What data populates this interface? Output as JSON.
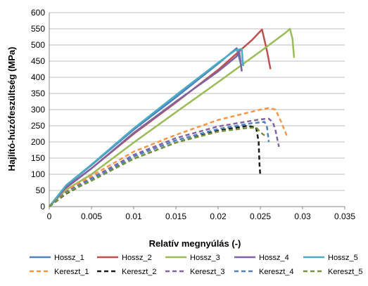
{
  "chart_data": {
    "type": "line",
    "xlabel": "Relatív megnyúlás (-)",
    "ylabel": "Hajlító-húzófeszültség (MPa)",
    "xlim": [
      0,
      0.035
    ],
    "ylim": [
      0,
      600
    ],
    "x_ticks": [
      "0",
      "0.005",
      "0.01",
      "0.015",
      "0.02",
      "0.025",
      "0.03",
      "0.035"
    ],
    "y_ticks": [
      "0",
      "50",
      "100",
      "150",
      "200",
      "250",
      "300",
      "350",
      "400",
      "450",
      "500",
      "550",
      "600"
    ],
    "grid": "horizontal",
    "legend_position": "bottom",
    "series": [
      {
        "name": "Hossz_1",
        "color": "#4F81BD",
        "dash": "solid",
        "points": [
          [
            0,
            0
          ],
          [
            0.002,
            65
          ],
          [
            0.005,
            128
          ],
          [
            0.01,
            238
          ],
          [
            0.015,
            338
          ],
          [
            0.02,
            442
          ],
          [
            0.0215,
            475
          ],
          [
            0.0222,
            490
          ],
          [
            0.0227,
            440
          ],
          [
            0.0228,
            418
          ]
        ]
      },
      {
        "name": "Hossz_2",
        "color": "#C0504D",
        "dash": "solid",
        "points": [
          [
            0,
            0
          ],
          [
            0.002,
            58
          ],
          [
            0.005,
            118
          ],
          [
            0.01,
            225
          ],
          [
            0.015,
            322
          ],
          [
            0.02,
            423
          ],
          [
            0.024,
            515
          ],
          [
            0.0252,
            548
          ],
          [
            0.0258,
            480
          ],
          [
            0.0262,
            425
          ]
        ]
      },
      {
        "name": "Hossz_3",
        "color": "#9BBB59",
        "dash": "solid",
        "points": [
          [
            0,
            0
          ],
          [
            0.002,
            52
          ],
          [
            0.005,
            100
          ],
          [
            0.01,
            198
          ],
          [
            0.015,
            292
          ],
          [
            0.02,
            385
          ],
          [
            0.025,
            480
          ],
          [
            0.028,
            538
          ],
          [
            0.0285,
            550
          ],
          [
            0.0288,
            520
          ],
          [
            0.029,
            460
          ]
        ]
      },
      {
        "name": "Hossz_4",
        "color": "#8064A2",
        "dash": "solid",
        "points": [
          [
            0,
            0
          ],
          [
            0.002,
            60
          ],
          [
            0.005,
            118
          ],
          [
            0.01,
            228
          ],
          [
            0.015,
            325
          ],
          [
            0.02,
            418
          ],
          [
            0.0222,
            465
          ],
          [
            0.0225,
            480
          ],
          [
            0.0227,
            440
          ],
          [
            0.0228,
            420
          ]
        ]
      },
      {
        "name": "Hossz_5",
        "color": "#4BACC6",
        "dash": "solid",
        "points": [
          [
            0,
            0
          ],
          [
            0.002,
            66
          ],
          [
            0.005,
            130
          ],
          [
            0.01,
            242
          ],
          [
            0.015,
            345
          ],
          [
            0.02,
            445
          ],
          [
            0.022,
            483
          ],
          [
            0.0228,
            488
          ],
          [
            0.0229,
            450
          ],
          [
            0.023,
            435
          ]
        ]
      },
      {
        "name": "Kereszt_1",
        "color": "#F79646",
        "dash": "dashed",
        "points": [
          [
            0,
            0
          ],
          [
            0.002,
            48
          ],
          [
            0.005,
            95
          ],
          [
            0.01,
            170
          ],
          [
            0.015,
            222
          ],
          [
            0.02,
            268
          ],
          [
            0.025,
            300
          ],
          [
            0.026,
            305
          ],
          [
            0.0268,
            300
          ],
          [
            0.0275,
            260
          ],
          [
            0.0282,
            215
          ]
        ]
      },
      {
        "name": "Kereszt_2",
        "color": "#1a1a1a",
        "dash": "dashed",
        "points": [
          [
            0,
            0
          ],
          [
            0.002,
            40
          ],
          [
            0.005,
            82
          ],
          [
            0.01,
            148
          ],
          [
            0.015,
            198
          ],
          [
            0.02,
            235
          ],
          [
            0.0235,
            250
          ],
          [
            0.0245,
            245
          ],
          [
            0.0248,
            200
          ],
          [
            0.0249,
            130
          ],
          [
            0.025,
            95
          ]
        ]
      },
      {
        "name": "Kereszt_3",
        "color": "#8064A2",
        "dash": "dashed",
        "points": [
          [
            0,
            0
          ],
          [
            0.002,
            45
          ],
          [
            0.005,
            88
          ],
          [
            0.01,
            160
          ],
          [
            0.015,
            212
          ],
          [
            0.02,
            248
          ],
          [
            0.025,
            270
          ],
          [
            0.026,
            272
          ],
          [
            0.0265,
            260
          ],
          [
            0.0268,
            235
          ],
          [
            0.0272,
            185
          ]
        ]
      },
      {
        "name": "Kereszt_4",
        "color": "#4F81BD",
        "dash": "dashed",
        "points": [
          [
            0,
            0
          ],
          [
            0.002,
            44
          ],
          [
            0.005,
            85
          ],
          [
            0.01,
            155
          ],
          [
            0.015,
            205
          ],
          [
            0.02,
            240
          ],
          [
            0.024,
            258
          ],
          [
            0.0255,
            262
          ],
          [
            0.0258,
            245
          ],
          [
            0.026,
            200
          ]
        ]
      },
      {
        "name": "Kereszt_5",
        "color": "#77933C",
        "dash": "dashed",
        "points": [
          [
            0,
            0
          ],
          [
            0.002,
            42
          ],
          [
            0.005,
            80
          ],
          [
            0.01,
            148
          ],
          [
            0.015,
            198
          ],
          [
            0.02,
            232
          ],
          [
            0.023,
            242
          ],
          [
            0.0245,
            245
          ],
          [
            0.025,
            230
          ],
          [
            0.0255,
            220
          ]
        ]
      }
    ]
  }
}
